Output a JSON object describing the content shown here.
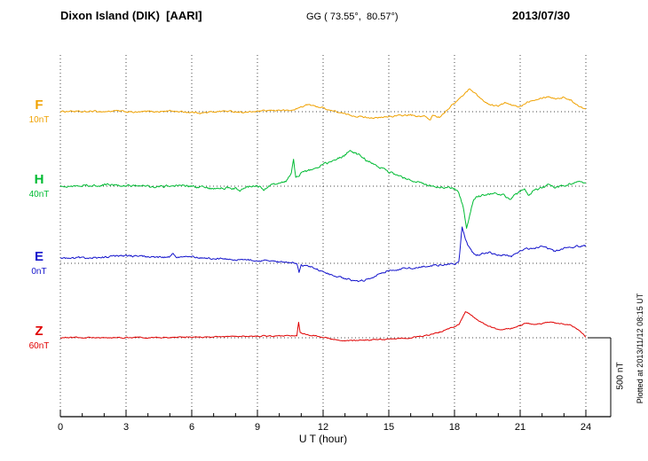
{
  "header": {
    "station": "Dixon Island (DIK)  [AARI]",
    "coords": "GG ( 73.55°,  80.57°)",
    "date": "2013/07/30"
  },
  "axis": {
    "xlabel": "U T (hour)",
    "tick_hours": [
      0,
      3,
      6,
      9,
      12,
      15,
      18,
      21,
      24
    ],
    "ticks": [
      "0",
      "3",
      "6",
      "9",
      "12",
      "15",
      "18",
      "21",
      "24"
    ],
    "xmin": 0,
    "xmax": 24
  },
  "scale_bar": {
    "label": "500 nT",
    "span_nT": 500
  },
  "footer_note": "Plotted at 2013/11/12 08:15 UT",
  "chart_data": {
    "type": "line",
    "title": "Dixon Island (DIK) [AARI] magnetogram 2013/07/30",
    "xlabel": "U T (hour)",
    "x_range_hours": [
      0,
      24
    ],
    "grid": "dotted vertical lines every 3 hours; dotted horizontal baseline per trace",
    "values_unit": "nT offset relative to each trace's dotted baseline; right bracket shows 500 nT span",
    "series": [
      {
        "name": "F",
        "baseline_label": "10nT",
        "color": "#F0A202",
        "noise_nT": 4,
        "keypoints": [
          [
            0,
            0
          ],
          [
            0.5,
            4
          ],
          [
            1,
            -2
          ],
          [
            1.5,
            3
          ],
          [
            2,
            0
          ],
          [
            2.5,
            5
          ],
          [
            3,
            0
          ],
          [
            3.5,
            -4
          ],
          [
            4,
            2
          ],
          [
            4.5,
            0
          ],
          [
            5,
            5
          ],
          [
            5.5,
            0
          ],
          [
            6,
            -4
          ],
          [
            6.5,
            -8
          ],
          [
            7,
            0
          ],
          [
            7.5,
            4
          ],
          [
            8,
            0
          ],
          [
            8.5,
            -4
          ],
          [
            9,
            2
          ],
          [
            9.5,
            6
          ],
          [
            10,
            10
          ],
          [
            10.5,
            6
          ],
          [
            10.8,
            18
          ],
          [
            11,
            30
          ],
          [
            11.3,
            45
          ],
          [
            11.6,
            35
          ],
          [
            12,
            25
          ],
          [
            12.3,
            10
          ],
          [
            12.6,
            0
          ],
          [
            13,
            -15
          ],
          [
            13.5,
            -28
          ],
          [
            14,
            -35
          ],
          [
            14.5,
            -40
          ],
          [
            15,
            -30
          ],
          [
            15.5,
            -25
          ],
          [
            16,
            -20
          ],
          [
            16.3,
            -33
          ],
          [
            16.6,
            -25
          ],
          [
            16.9,
            -55
          ],
          [
            17,
            -20
          ],
          [
            17.3,
            -35
          ],
          [
            17.6,
            5
          ],
          [
            18,
            55
          ],
          [
            18.3,
            90
          ],
          [
            18.5,
            118
          ],
          [
            18.7,
            145
          ],
          [
            19,
            108
          ],
          [
            19.3,
            70
          ],
          [
            19.6,
            45
          ],
          [
            20,
            35
          ],
          [
            20.3,
            55
          ],
          [
            20.6,
            40
          ],
          [
            21,
            30
          ],
          [
            21.3,
            60
          ],
          [
            21.6,
            75
          ],
          [
            22,
            88
          ],
          [
            22.3,
            95
          ],
          [
            22.6,
            82
          ],
          [
            23,
            90
          ],
          [
            23.3,
            72
          ],
          [
            23.6,
            45
          ],
          [
            24,
            12
          ]
        ]
      },
      {
        "name": "H",
        "baseline_label": "40nT",
        "color": "#00BB33",
        "noise_nT": 6,
        "keypoints": [
          [
            0,
            5
          ],
          [
            0.5,
            0
          ],
          [
            1,
            8
          ],
          [
            1.5,
            3
          ],
          [
            2,
            10
          ],
          [
            2.5,
            5
          ],
          [
            3,
            0
          ],
          [
            3.5,
            6
          ],
          [
            4,
            0
          ],
          [
            4.5,
            -5
          ],
          [
            5,
            2
          ],
          [
            5.5,
            6
          ],
          [
            6,
            0
          ],
          [
            6.5,
            -10
          ],
          [
            7,
            -15
          ],
          [
            7.5,
            -10
          ],
          [
            8,
            -16
          ],
          [
            8.2,
            -28
          ],
          [
            8.5,
            -10
          ],
          [
            9,
            0
          ],
          [
            9.3,
            -20
          ],
          [
            9.6,
            8
          ],
          [
            10,
            18
          ],
          [
            10.3,
            28
          ],
          [
            10.55,
            85
          ],
          [
            10.65,
            170
          ],
          [
            10.75,
            60
          ],
          [
            11,
            80
          ],
          [
            11.3,
            95
          ],
          [
            11.6,
            110
          ],
          [
            12,
            135
          ],
          [
            12.3,
            150
          ],
          [
            12.6,
            165
          ],
          [
            13,
            195
          ],
          [
            13.2,
            225
          ],
          [
            13.5,
            205
          ],
          [
            13.8,
            185
          ],
          [
            14,
            160
          ],
          [
            14.3,
            140
          ],
          [
            14.6,
            120
          ],
          [
            15,
            90
          ],
          [
            15.3,
            70
          ],
          [
            15.6,
            55
          ],
          [
            16,
            35
          ],
          [
            16.5,
            18
          ],
          [
            17,
            5
          ],
          [
            17.3,
            -10
          ],
          [
            17.6,
            -5
          ],
          [
            18,
            -15
          ],
          [
            18.2,
            -40
          ],
          [
            18.4,
            -130
          ],
          [
            18.55,
            -270
          ],
          [
            18.7,
            -185
          ],
          [
            18.85,
            -95
          ],
          [
            19,
            -70
          ],
          [
            19.3,
            -55
          ],
          [
            19.6,
            -50
          ],
          [
            20,
            -45
          ],
          [
            20.3,
            -60
          ],
          [
            20.5,
            -85
          ],
          [
            20.7,
            -60
          ],
          [
            21,
            -35
          ],
          [
            21.2,
            -20
          ],
          [
            21.4,
            -60
          ],
          [
            21.6,
            -28
          ],
          [
            22,
            -10
          ],
          [
            22.3,
            6
          ],
          [
            22.6,
            -6
          ],
          [
            23,
            5
          ],
          [
            23.3,
            15
          ],
          [
            23.6,
            25
          ],
          [
            24,
            15
          ]
        ]
      },
      {
        "name": "E",
        "baseline_label": "0nT",
        "color": "#1414CC",
        "noise_nT": 5,
        "keypoints": [
          [
            0,
            30
          ],
          [
            0.5,
            32
          ],
          [
            1,
            35
          ],
          [
            1.5,
            33
          ],
          [
            2,
            38
          ],
          [
            2.5,
            42
          ],
          [
            3,
            48
          ],
          [
            3.5,
            44
          ],
          [
            4,
            40
          ],
          [
            4.5,
            38
          ],
          [
            5,
            40
          ],
          [
            5.15,
            62
          ],
          [
            5.3,
            42
          ],
          [
            6,
            38
          ],
          [
            6.5,
            35
          ],
          [
            7,
            30
          ],
          [
            7.5,
            28
          ],
          [
            8,
            25
          ],
          [
            8.5,
            22
          ],
          [
            9,
            18
          ],
          [
            9.5,
            12
          ],
          [
            10,
            8
          ],
          [
            10.5,
            5
          ],
          [
            10.8,
            2
          ],
          [
            10.9,
            -55
          ],
          [
            11,
            -12
          ],
          [
            11.5,
            -25
          ],
          [
            12,
            -55
          ],
          [
            12.5,
            -75
          ],
          [
            13,
            -95
          ],
          [
            13.3,
            -105
          ],
          [
            13.6,
            -115
          ],
          [
            14,
            -100
          ],
          [
            14.3,
            -85
          ],
          [
            14.6,
            -62
          ],
          [
            15,
            -45
          ],
          [
            15.5,
            -35
          ],
          [
            16,
            -30
          ],
          [
            16.5,
            -24
          ],
          [
            17,
            -15
          ],
          [
            17.5,
            -10
          ],
          [
            18,
            -4
          ],
          [
            18.2,
            12
          ],
          [
            18.35,
            230
          ],
          [
            18.5,
            150
          ],
          [
            18.6,
            118
          ],
          [
            18.8,
            70
          ],
          [
            19,
            52
          ],
          [
            19.3,
            60
          ],
          [
            19.6,
            66
          ],
          [
            20,
            55
          ],
          [
            20.3,
            50
          ],
          [
            20.6,
            42
          ],
          [
            21,
            75
          ],
          [
            21.3,
            88
          ],
          [
            21.6,
            95
          ],
          [
            22,
            105
          ],
          [
            22.3,
            90
          ],
          [
            22.6,
            76
          ],
          [
            23,
            95
          ],
          [
            23.3,
            100
          ],
          [
            23.6,
            106
          ],
          [
            24,
            110
          ]
        ]
      },
      {
        "name": "Z",
        "baseline_label": "60nT",
        "color": "#E00000",
        "noise_nT": 3,
        "keypoints": [
          [
            0,
            0
          ],
          [
            0.5,
            2
          ],
          [
            1,
            1
          ],
          [
            1.5,
            3
          ],
          [
            2,
            0
          ],
          [
            2.5,
            2
          ],
          [
            3,
            1
          ],
          [
            3.5,
            3
          ],
          [
            4,
            0
          ],
          [
            4.5,
            2
          ],
          [
            5,
            3
          ],
          [
            5.5,
            2
          ],
          [
            6,
            3
          ],
          [
            6.5,
            4
          ],
          [
            7,
            5
          ],
          [
            7.5,
            7
          ],
          [
            8,
            8
          ],
          [
            8.5,
            10
          ],
          [
            9,
            12
          ],
          [
            9.5,
            10
          ],
          [
            10,
            12
          ],
          [
            10.5,
            10
          ],
          [
            10.8,
            15
          ],
          [
            10.88,
            100
          ],
          [
            10.95,
            35
          ],
          [
            11.2,
            20
          ],
          [
            11.5,
            15
          ],
          [
            12,
            5
          ],
          [
            12.5,
            -10
          ],
          [
            13,
            -20
          ],
          [
            13.5,
            -18
          ],
          [
            14,
            -15
          ],
          [
            14.5,
            -12
          ],
          [
            15,
            -8
          ],
          [
            15.5,
            -5
          ],
          [
            16,
            0
          ],
          [
            16.5,
            10
          ],
          [
            17,
            22
          ],
          [
            17.5,
            45
          ],
          [
            18,
            70
          ],
          [
            18.2,
            85
          ],
          [
            18.5,
            160
          ],
          [
            18.7,
            148
          ],
          [
            19,
            115
          ],
          [
            19.3,
            90
          ],
          [
            19.6,
            70
          ],
          [
            20,
            50
          ],
          [
            20.3,
            56
          ],
          [
            20.6,
            60
          ],
          [
            21,
            75
          ],
          [
            21.3,
            95
          ],
          [
            21.6,
            80
          ],
          [
            22,
            90
          ],
          [
            22.3,
            98
          ],
          [
            22.6,
            92
          ],
          [
            23,
            85
          ],
          [
            23.3,
            78
          ],
          [
            23.6,
            55
          ],
          [
            23.8,
            30
          ],
          [
            24,
            5
          ]
        ]
      }
    ]
  }
}
